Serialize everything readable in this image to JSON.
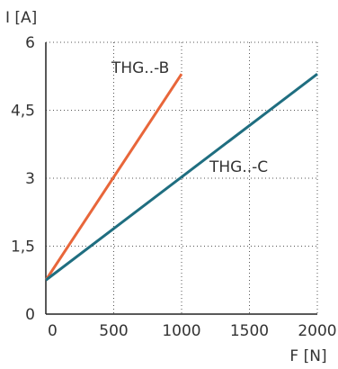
{
  "chart_data": {
    "type": "line",
    "title": "",
    "xlabel": "F [N]",
    "ylabel": "I [A]",
    "xlim": [
      0,
      2000
    ],
    "ylim": [
      0,
      6
    ],
    "x_ticks": [
      0,
      500,
      1000,
      1500,
      2000
    ],
    "x_tick_labels": [
      "0",
      "500",
      "1000",
      "1500",
      "2000"
    ],
    "y_ticks": [
      0,
      1.5,
      3,
      4.5,
      6
    ],
    "y_tick_labels": [
      "0",
      "1,5",
      "3",
      "4,5",
      "6"
    ],
    "grid": true,
    "series": [
      {
        "name": "THG..-B",
        "color": "#e8663a",
        "x": [
          0,
          1000
        ],
        "y": [
          0.75,
          5.3
        ]
      },
      {
        "name": "THG..-C",
        "color": "#1f6e80",
        "x": [
          0,
          2000
        ],
        "y": [
          0.75,
          5.3
        ]
      }
    ]
  }
}
